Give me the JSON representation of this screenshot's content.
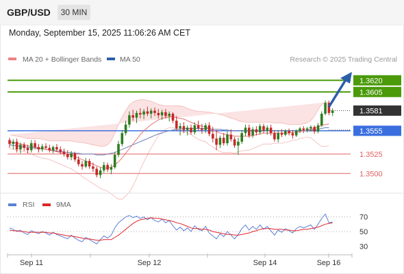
{
  "header": {
    "symbol": "GBP/USD",
    "timeframe": "30 MIN"
  },
  "timestamp": "Monday, September 15, 2025 11:06:26 AM CET",
  "copyright": "Research © 2025 Trading Central",
  "legend": {
    "bollinger": {
      "label": "MA 20 + Bollinger Bands",
      "color": "#f08080"
    },
    "ma50": {
      "label": "MA 50",
      "color": "#2b5ea8"
    },
    "rsi": {
      "label": "RSI",
      "color": "#5b7fd6"
    },
    "rsi_ma": {
      "label": "9MA",
      "color": "#e0252b"
    }
  },
  "colors": {
    "bullish": "#2e7d22",
    "bearish": "#c62828",
    "resistance": "#4a9a0a",
    "pivot": "#3b6fe0",
    "support": "#e06060",
    "arrow": "#2b5ea8",
    "last_price": "#333333"
  },
  "chart_data": [
    {
      "type": "candlestick",
      "title": "GBP/USD",
      "x_ticks": [
        "Sep 11",
        "Sep 12",
        "Sep 14",
        "Sep 16"
      ],
      "y_range": [
        1.3487,
        1.3637
      ],
      "levels": [
        {
          "label": "1.3620",
          "value": 1.362,
          "kind": "resistance"
        },
        {
          "label": "1.3605",
          "value": 1.3605,
          "kind": "resistance"
        },
        {
          "label": "1.3581",
          "value": 1.3581,
          "kind": "last"
        },
        {
          "label": "1.3555",
          "value": 1.3555,
          "kind": "pivot"
        },
        {
          "label": "1.3525",
          "value": 1.3525,
          "kind": "support"
        },
        {
          "label": "1.3500",
          "value": 1.35,
          "kind": "support"
        }
      ],
      "candles_ohlc": [
        [
          1.3543,
          1.3546,
          1.3533,
          1.3538
        ],
        [
          1.3538,
          1.3544,
          1.3531,
          1.3541
        ],
        [
          1.3541,
          1.3545,
          1.3527,
          1.3531
        ],
        [
          1.3531,
          1.354,
          1.3526,
          1.3537
        ],
        [
          1.3537,
          1.354,
          1.3529,
          1.3533
        ],
        [
          1.3533,
          1.3537,
          1.3526,
          1.353
        ],
        [
          1.353,
          1.3543,
          1.3527,
          1.3539
        ],
        [
          1.3539,
          1.3543,
          1.3531,
          1.3534
        ],
        [
          1.3534,
          1.3538,
          1.3527,
          1.3531
        ],
        [
          1.3531,
          1.3538,
          1.3528,
          1.3535
        ],
        [
          1.3535,
          1.3539,
          1.3531,
          1.3533
        ],
        [
          1.3533,
          1.3537,
          1.3527,
          1.353
        ],
        [
          1.353,
          1.3536,
          1.3526,
          1.3534
        ],
        [
          1.3534,
          1.3538,
          1.3528,
          1.3531
        ],
        [
          1.3531,
          1.3535,
          1.3525,
          1.3528
        ],
        [
          1.3528,
          1.3532,
          1.3522,
          1.3525
        ],
        [
          1.3525,
          1.353,
          1.3518,
          1.3521
        ],
        [
          1.3521,
          1.3529,
          1.3517,
          1.3526
        ],
        [
          1.3526,
          1.3528,
          1.3515,
          1.3518
        ],
        [
          1.3518,
          1.3522,
          1.3509,
          1.3512
        ],
        [
          1.3512,
          1.3516,
          1.3505,
          1.3509
        ],
        [
          1.3509,
          1.352,
          1.3507,
          1.3516
        ],
        [
          1.3516,
          1.3519,
          1.3506,
          1.3509
        ],
        [
          1.3509,
          1.3514,
          1.3502,
          1.3506
        ],
        [
          1.3506,
          1.3509,
          1.3495,
          1.3498
        ],
        [
          1.3498,
          1.3508,
          1.3494,
          1.3504
        ],
        [
          1.3504,
          1.3515,
          1.3501,
          1.3511
        ],
        [
          1.3511,
          1.3514,
          1.3502,
          1.3505
        ],
        [
          1.3505,
          1.3512,
          1.3499,
          1.3508
        ],
        [
          1.3508,
          1.3528,
          1.3506,
          1.3524
        ],
        [
          1.3524,
          1.3542,
          1.3521,
          1.3538
        ],
        [
          1.3538,
          1.3556,
          1.3535,
          1.3552
        ],
        [
          1.3552,
          1.3568,
          1.3549,
          1.3563
        ],
        [
          1.3563,
          1.358,
          1.3559,
          1.3575
        ],
        [
          1.3575,
          1.3582,
          1.3568,
          1.3572
        ],
        [
          1.3572,
          1.3581,
          1.3565,
          1.3578
        ],
        [
          1.3578,
          1.3584,
          1.3571,
          1.3576
        ],
        [
          1.3576,
          1.3583,
          1.357,
          1.358
        ],
        [
          1.358,
          1.3586,
          1.3574,
          1.3577
        ],
        [
          1.3577,
          1.3584,
          1.3571,
          1.3581
        ],
        [
          1.3581,
          1.3585,
          1.3574,
          1.3578
        ],
        [
          1.3578,
          1.3583,
          1.3571,
          1.3575
        ],
        [
          1.3575,
          1.3582,
          1.3569,
          1.3579
        ],
        [
          1.3579,
          1.3583,
          1.3571,
          1.3574
        ],
        [
          1.3574,
          1.358,
          1.3567,
          1.3577
        ],
        [
          1.3577,
          1.3579,
          1.3565,
          1.3568
        ],
        [
          1.3568,
          1.3574,
          1.3555,
          1.3558
        ],
        [
          1.3558,
          1.3565,
          1.3549,
          1.3561
        ],
        [
          1.3561,
          1.3566,
          1.3552,
          1.3556
        ],
        [
          1.3556,
          1.3562,
          1.3549,
          1.3559
        ],
        [
          1.3559,
          1.3563,
          1.355,
          1.3553
        ],
        [
          1.3553,
          1.3566,
          1.355,
          1.3562
        ],
        [
          1.3562,
          1.3568,
          1.3555,
          1.3558
        ],
        [
          1.3558,
          1.3564,
          1.3551,
          1.3556
        ],
        [
          1.3556,
          1.3565,
          1.3552,
          1.3562
        ],
        [
          1.3562,
          1.3566,
          1.3548,
          1.3551
        ],
        [
          1.3551,
          1.356,
          1.354,
          1.3545
        ],
        [
          1.3545,
          1.3556,
          1.353,
          1.3537
        ],
        [
          1.3537,
          1.3549,
          1.3533,
          1.3546
        ],
        [
          1.3546,
          1.3552,
          1.3536,
          1.3539
        ],
        [
          1.3539,
          1.3554,
          1.3536,
          1.355
        ],
        [
          1.355,
          1.3557,
          1.3541,
          1.3544
        ],
        [
          1.3544,
          1.3547,
          1.3533,
          1.3536
        ],
        [
          1.3536,
          1.3546,
          1.3524,
          1.3541
        ],
        [
          1.3541,
          1.3556,
          1.3538,
          1.3552
        ],
        [
          1.3552,
          1.3563,
          1.3548,
          1.3559
        ],
        [
          1.3559,
          1.3563,
          1.3546,
          1.3549
        ],
        [
          1.3549,
          1.356,
          1.3546,
          1.3557
        ],
        [
          1.3557,
          1.3561,
          1.3549,
          1.3553
        ],
        [
          1.3553,
          1.3564,
          1.355,
          1.3561
        ],
        [
          1.3561,
          1.3564,
          1.3552,
          1.3555
        ],
        [
          1.3555,
          1.3562,
          1.355,
          1.3559
        ],
        [
          1.3559,
          1.3563,
          1.3549,
          1.3552
        ],
        [
          1.3552,
          1.3556,
          1.3541,
          1.3544
        ],
        [
          1.3544,
          1.3556,
          1.354,
          1.3552
        ],
        [
          1.3552,
          1.3557,
          1.3547,
          1.355
        ],
        [
          1.355,
          1.3557,
          1.3548,
          1.3555
        ],
        [
          1.3555,
          1.3558,
          1.3549,
          1.3552
        ],
        [
          1.3552,
          1.3556,
          1.3545,
          1.3549
        ],
        [
          1.3549,
          1.3557,
          1.3547,
          1.3555
        ],
        [
          1.3555,
          1.356,
          1.3552,
          1.3558
        ],
        [
          1.3558,
          1.3561,
          1.3552,
          1.3556
        ],
        [
          1.3556,
          1.356,
          1.3553,
          1.3558
        ],
        [
          1.3558,
          1.3562,
          1.3554,
          1.356
        ],
        [
          1.356,
          1.3562,
          1.3551,
          1.3554
        ],
        [
          1.3554,
          1.3565,
          1.3552,
          1.3562
        ],
        [
          1.3562,
          1.358,
          1.356,
          1.3577
        ],
        [
          1.3577,
          1.3594,
          1.3575,
          1.3591
        ],
        [
          1.3591,
          1.3594,
          1.3575,
          1.3578
        ],
        [
          1.3578,
          1.3584,
          1.3574,
          1.3581
        ]
      ],
      "ma20": [
        1.3541,
        1.354,
        1.3539,
        1.3538,
        1.3537,
        1.3536,
        1.3535,
        1.3534,
        1.3533,
        1.3532,
        1.3531,
        1.353,
        1.3529,
        1.3528,
        1.3527,
        1.3526,
        1.3525,
        1.3524,
        1.3522,
        1.352,
        1.3518,
        1.3516,
        1.3514,
        1.3512,
        1.351,
        1.3508,
        1.3507,
        1.3507,
        1.3508,
        1.3511,
        1.3515,
        1.352,
        1.3526,
        1.3532,
        1.3538,
        1.3544,
        1.355,
        1.3555,
        1.3559,
        1.3563,
        1.3566,
        1.3569,
        1.3571,
        1.3572,
        1.3573,
        1.3573,
        1.3572,
        1.3571,
        1.357,
        1.3568,
        1.3566,
        1.3564,
        1.3562,
        1.3561,
        1.356,
        1.3558,
        1.3556,
        1.3554,
        1.3552,
        1.3551,
        1.355,
        1.3549,
        1.3548,
        1.3548,
        1.3548,
        1.3548,
        1.3548,
        1.3549,
        1.355,
        1.3551,
        1.3552,
        1.3552,
        1.3552,
        1.3552,
        1.3552,
        1.3552,
        1.3552,
        1.3552,
        1.3553,
        1.3553,
        1.3554,
        1.3555,
        1.3556,
        1.3557,
        1.3558,
        1.356,
        1.3562,
        1.3563,
        1.3564
      ],
      "bb_upper": [
        1.355,
        1.3549,
        1.3548,
        1.3547,
        1.3546,
        1.3545,
        1.3545,
        1.3545,
        1.3545,
        1.3544,
        1.3543,
        1.3542,
        1.3542,
        1.3542,
        1.3542,
        1.3542,
        1.3542,
        1.3542,
        1.3541,
        1.354,
        1.354,
        1.3539,
        1.3538,
        1.3537,
        1.3536,
        1.3535,
        1.3535,
        1.3537,
        1.3542,
        1.3552,
        1.3563,
        1.3573,
        1.3581,
        1.3588,
        1.3592,
        1.3594,
        1.3595,
        1.3595,
        1.3594,
        1.3593,
        1.3591,
        1.3589,
        1.3588,
        1.3587,
        1.3587,
        1.3587,
        1.3587,
        1.3587,
        1.3586,
        1.3584,
        1.3582,
        1.3581,
        1.358,
        1.358,
        1.3579,
        1.3579,
        1.3578,
        1.3577,
        1.3576,
        1.3575,
        1.3573,
        1.3571,
        1.357,
        1.3568,
        1.3567,
        1.3566,
        1.3566,
        1.3566,
        1.3566,
        1.3566,
        1.3566,
        1.3566,
        1.3566,
        1.3565,
        1.3565,
        1.3565,
        1.3564,
        1.3563,
        1.3563,
        1.3563,
        1.3563,
        1.3564,
        1.3565,
        1.3568,
        1.3574,
        1.3582,
        1.3589,
        1.3591,
        1.3592
      ],
      "bb_lower": [
        1.3532,
        1.3531,
        1.353,
        1.3529,
        1.3528,
        1.3527,
        1.3525,
        1.3523,
        1.3521,
        1.352,
        1.3519,
        1.3518,
        1.3516,
        1.3514,
        1.3512,
        1.351,
        1.3508,
        1.3506,
        1.3503,
        1.35,
        1.3496,
        1.3493,
        1.349,
        1.3487,
        1.3484,
        1.3481,
        1.3479,
        1.3477,
        1.3474,
        1.347,
        1.3467,
        1.3467,
        1.3471,
        1.3476,
        1.3484,
        1.3494,
        1.3505,
        1.3515,
        1.3524,
        1.3533,
        1.3541,
        1.3549,
        1.3554,
        1.3557,
        1.3559,
        1.3559,
        1.3557,
        1.3555,
        1.3554,
        1.3552,
        1.355,
        1.3547,
        1.3544,
        1.3542,
        1.3541,
        1.3537,
        1.3534,
        1.3531,
        1.3528,
        1.3527,
        1.3527,
        1.3527,
        1.3526,
        1.3528,
        1.3529,
        1.353,
        1.353,
        1.3532,
        1.3534,
        1.3536,
        1.3538,
        1.3538,
        1.3538,
        1.3539,
        1.3539,
        1.3539,
        1.354,
        1.3541,
        1.3543,
        1.3543,
        1.3545,
        1.3546,
        1.3547,
        1.3546,
        1.3542,
        1.3538,
        1.3535,
        1.3535,
        1.3536
      ],
      "ma50": [
        1.3537,
        1.3536,
        1.3536,
        1.3535,
        1.3534,
        1.3534,
        1.3533,
        1.3533,
        1.3532,
        1.3532,
        1.3531,
        1.353,
        1.353,
        1.3529,
        1.3528,
        1.3528,
        1.3527,
        1.3527,
        1.3526,
        1.3526,
        1.3525,
        1.3525,
        1.3525,
        1.3525,
        1.3524,
        1.3524,
        1.3524,
        1.3525,
        1.3526,
        1.3527,
        1.3529,
        1.3531,
        1.3533,
        1.3535,
        1.3537,
        1.3539,
        1.3541,
        1.3543,
        1.3545,
        1.3547,
        1.3549,
        1.3551,
        1.3552,
        1.3554,
        1.3555,
        1.3556,
        1.3557,
        1.3557,
        1.3558,
        1.3558,
        1.3558,
        1.3558,
        1.3558,
        1.3558,
        1.3558,
        1.3558,
        1.3557,
        1.3557,
        1.3557,
        1.3556,
        1.3556,
        1.3555,
        1.3555,
        1.3555,
        1.3555,
        1.3555,
        1.3555,
        1.3555,
        1.3555,
        1.3555,
        1.3555,
        1.3555,
        1.3555,
        1.3555,
        1.3555,
        1.3555,
        1.3555,
        1.3555,
        1.3555,
        1.3555,
        1.3555,
        1.3555,
        1.3555,
        1.3556,
        1.3556,
        1.3557,
        1.3558,
        1.3559,
        1.3559
      ]
    },
    {
      "type": "line",
      "title": "RSI",
      "x_ticks": [
        "Sep 11",
        "Sep 12",
        "Sep 14",
        "Sep 16"
      ],
      "y_ticks": [
        70,
        50,
        30
      ],
      "y_range": [
        20,
        80
      ],
      "series": [
        {
          "name": "RSI",
          "values": [
            55,
            53,
            50,
            52,
            48,
            46,
            51,
            49,
            47,
            50,
            48,
            45,
            49,
            46,
            44,
            42,
            40,
            45,
            41,
            38,
            36,
            42,
            39,
            36,
            33,
            39,
            44,
            41,
            45,
            55,
            62,
            66,
            70,
            72,
            69,
            71,
            68,
            70,
            66,
            69,
            65,
            63,
            67,
            62,
            65,
            58,
            52,
            56,
            51,
            55,
            50,
            58,
            53,
            51,
            57,
            48,
            44,
            40,
            47,
            43,
            50,
            45,
            40,
            46,
            54,
            59,
            52,
            57,
            53,
            59,
            53,
            57,
            51,
            45,
            52,
            49,
            54,
            51,
            48,
            54,
            57,
            55,
            57,
            59,
            53,
            60,
            68,
            74,
            62,
            63
          ]
        },
        {
          "name": "9MA",
          "values": [
            52,
            51,
            51,
            50,
            50,
            49,
            49,
            49,
            49,
            49,
            49,
            48,
            48,
            47,
            46,
            45,
            44,
            44,
            43,
            42,
            41,
            40,
            40,
            39,
            38,
            38,
            39,
            39,
            39,
            42,
            45,
            49,
            53,
            57,
            61,
            64,
            66,
            67,
            68,
            69,
            68,
            68,
            67,
            66,
            65,
            64,
            62,
            61,
            59,
            57,
            55,
            54,
            54,
            53,
            53,
            52,
            50,
            49,
            48,
            47,
            46,
            46,
            45,
            45,
            46,
            47,
            48,
            50,
            51,
            53,
            54,
            54,
            54,
            53,
            53,
            53,
            52,
            52,
            51,
            51,
            52,
            53,
            53,
            54,
            55,
            56,
            58,
            60,
            61,
            62
          ]
        }
      ]
    }
  ]
}
